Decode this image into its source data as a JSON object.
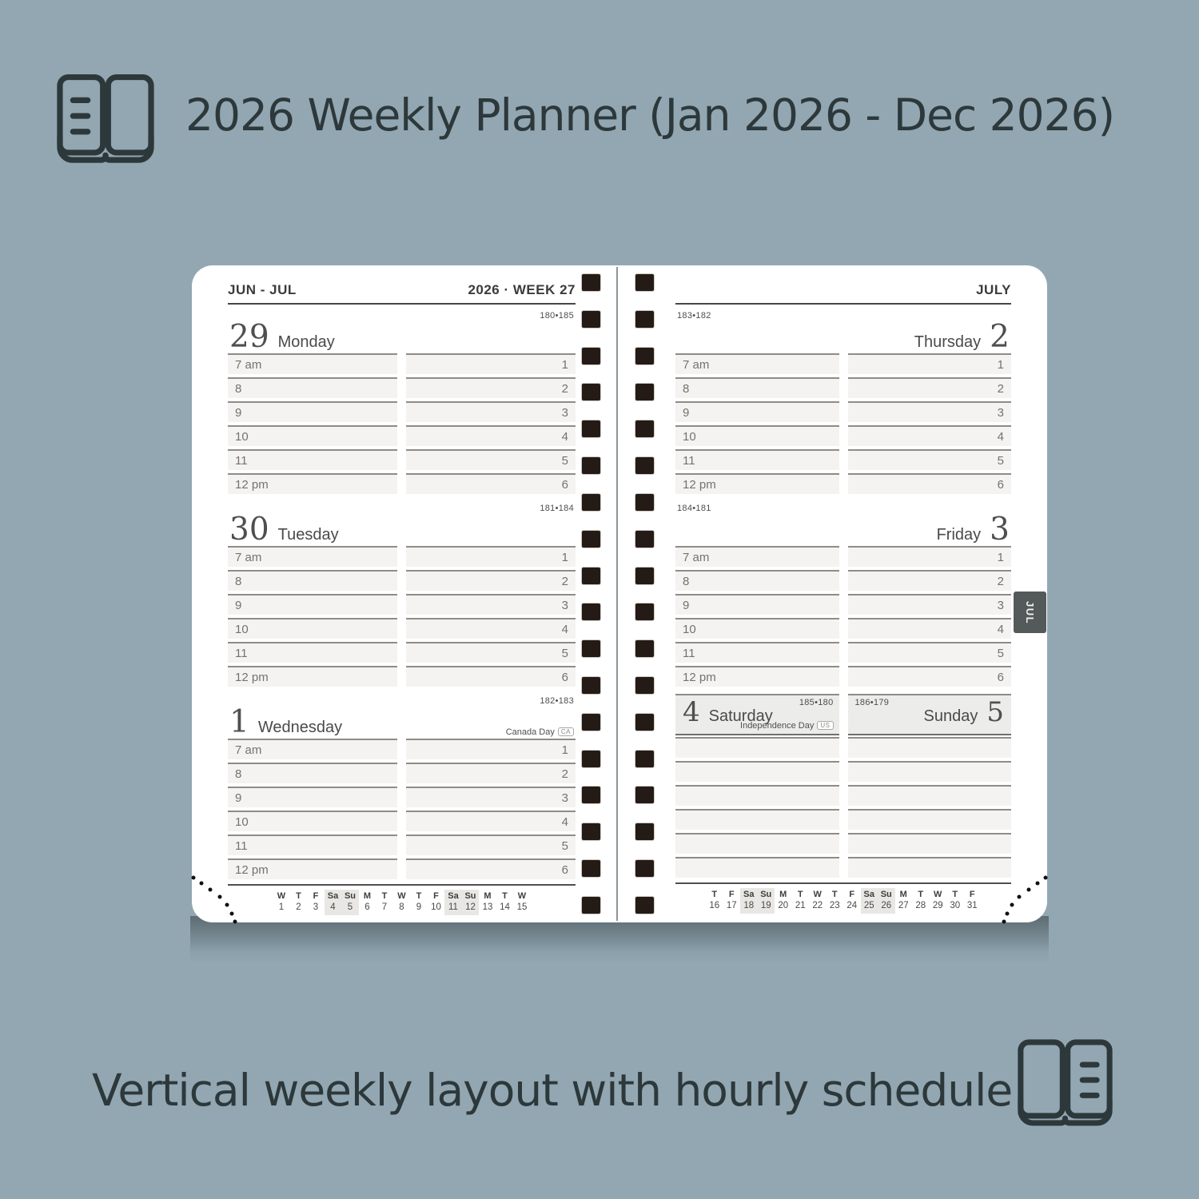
{
  "header": {
    "title": "2026 Weekly Planner (Jan 2026 - Dec 2026)",
    "icon": "open-planner-icon"
  },
  "footer": {
    "caption": "Vertical weekly layout with hourly schedule",
    "icon": "open-planner-icon"
  },
  "colors": {
    "background": "#92a7b2",
    "ink": "#2d383b",
    "page": "#ffffff",
    "slot_fill": "#f4f3f1",
    "slot_line": "#8f8b87",
    "binding_square": "#241b16",
    "tab_bg": "#54595a",
    "weekend_header_bg": "#ececea",
    "weekend_highlight": "#e9e7e3",
    "shadow_band": "#5d6c72"
  },
  "binding": {
    "columns": 2,
    "squares_per_column": 18
  },
  "spread": {
    "left_page": {
      "header_left": "JUN - JUL",
      "header_right": "2026 · WEEK 27",
      "morning_labels": [
        "7 am",
        "8",
        "9",
        "10",
        "11",
        "12 pm"
      ],
      "afternoon_labels": [
        "1",
        "2",
        "3",
        "4",
        "5",
        "6"
      ],
      "days": [
        {
          "date": "29",
          "name": "Monday",
          "pagination": "180•185"
        },
        {
          "date": "30",
          "name": "Tuesday",
          "pagination": "181•184"
        },
        {
          "date": "1",
          "name": "Wednesday",
          "pagination": "182•183",
          "holiday": "Canada Day",
          "holiday_badge": "CA"
        }
      ],
      "mini_calendar": {
        "weekdays": [
          "W",
          "T",
          "F",
          "Sa",
          "Su",
          "M",
          "T",
          "W",
          "T",
          "F",
          "Sa",
          "Su",
          "M",
          "T",
          "W"
        ],
        "dates": [
          "1",
          "2",
          "3",
          "4",
          "5",
          "6",
          "7",
          "8",
          "9",
          "10",
          "11",
          "12",
          "13",
          "14",
          "15"
        ],
        "highlighted_indexes": [
          3,
          4,
          10,
          11
        ]
      }
    },
    "right_page": {
      "header_right": "JULY",
      "tab_label": "JUL",
      "morning_labels": [
        "7 am",
        "8",
        "9",
        "10",
        "11",
        "12 pm"
      ],
      "afternoon_labels": [
        "1",
        "2",
        "3",
        "4",
        "5",
        "6"
      ],
      "days": [
        {
          "date": "2",
          "name": "Thursday",
          "pagination": "183•182"
        },
        {
          "date": "3",
          "name": "Friday",
          "pagination": "184•181"
        }
      ],
      "weekend": {
        "saturday": {
          "date": "4",
          "name": "Saturday",
          "pagination": "185•180",
          "holiday": "Independence Day",
          "holiday_badge": "US"
        },
        "sunday": {
          "date": "5",
          "name": "Sunday",
          "pagination": "186•179"
        },
        "empty_rows_per_column": 6
      },
      "mini_calendar": {
        "weekdays": [
          "T",
          "F",
          "Sa",
          "Su",
          "M",
          "T",
          "W",
          "T",
          "F",
          "Sa",
          "Su",
          "M",
          "T",
          "W",
          "T",
          "F"
        ],
        "dates": [
          "16",
          "17",
          "18",
          "19",
          "20",
          "21",
          "22",
          "23",
          "24",
          "25",
          "26",
          "27",
          "28",
          "29",
          "30",
          "31"
        ],
        "highlighted_indexes": [
          2,
          3,
          9,
          10
        ]
      }
    }
  }
}
